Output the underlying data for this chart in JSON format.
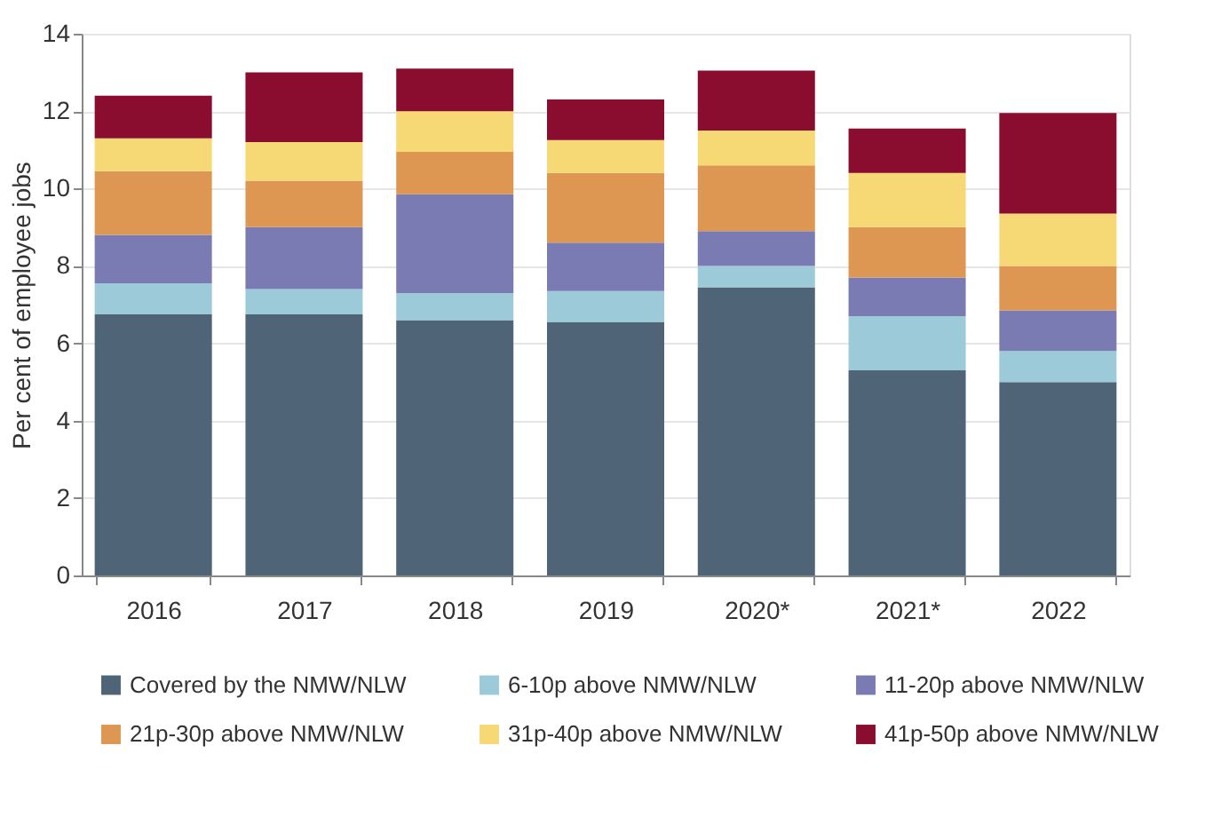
{
  "chart_data": {
    "type": "bar",
    "stacked": true,
    "ylabel": "Per cent of employee jobs",
    "categories": [
      "2016",
      "2017",
      "2018",
      "2019",
      "2020*",
      "2021*",
      "2022"
    ],
    "series": [
      {
        "name": "Covered by the NMW/NLW",
        "color": "#4f6477",
        "values": [
          6.75,
          6.75,
          6.6,
          6.55,
          7.45,
          5.3,
          5.0
        ]
      },
      {
        "name": "6-10p above NMW/NLW",
        "color": "#9ccad9",
        "values": [
          0.8,
          0.65,
          0.7,
          0.8,
          0.55,
          1.4,
          0.8
        ]
      },
      {
        "name": "11-20p above NMW/NLW",
        "color": "#7a7bb3",
        "values": [
          1.25,
          1.6,
          2.55,
          1.25,
          0.9,
          1.0,
          1.05
        ]
      },
      {
        "name": "21p-30p above NMW/NLW",
        "color": "#de9753",
        "values": [
          1.65,
          1.2,
          1.1,
          1.8,
          1.7,
          1.3,
          1.15
        ]
      },
      {
        "name": "31p-40p above NMW/NLW",
        "color": "#f6d874",
        "values": [
          0.85,
          1.0,
          1.05,
          0.85,
          0.9,
          1.4,
          1.35
        ]
      },
      {
        "name": "41p-50p above NMW/NLW",
        "color": "#8a0c2e",
        "values": [
          1.1,
          1.8,
          1.1,
          1.05,
          1.55,
          1.15,
          2.6
        ]
      }
    ],
    "ylim": [
      0,
      14
    ],
    "yticks": [
      0,
      2,
      4,
      6,
      8,
      10,
      12,
      14
    ],
    "grid": "y",
    "legend": "bottom"
  }
}
